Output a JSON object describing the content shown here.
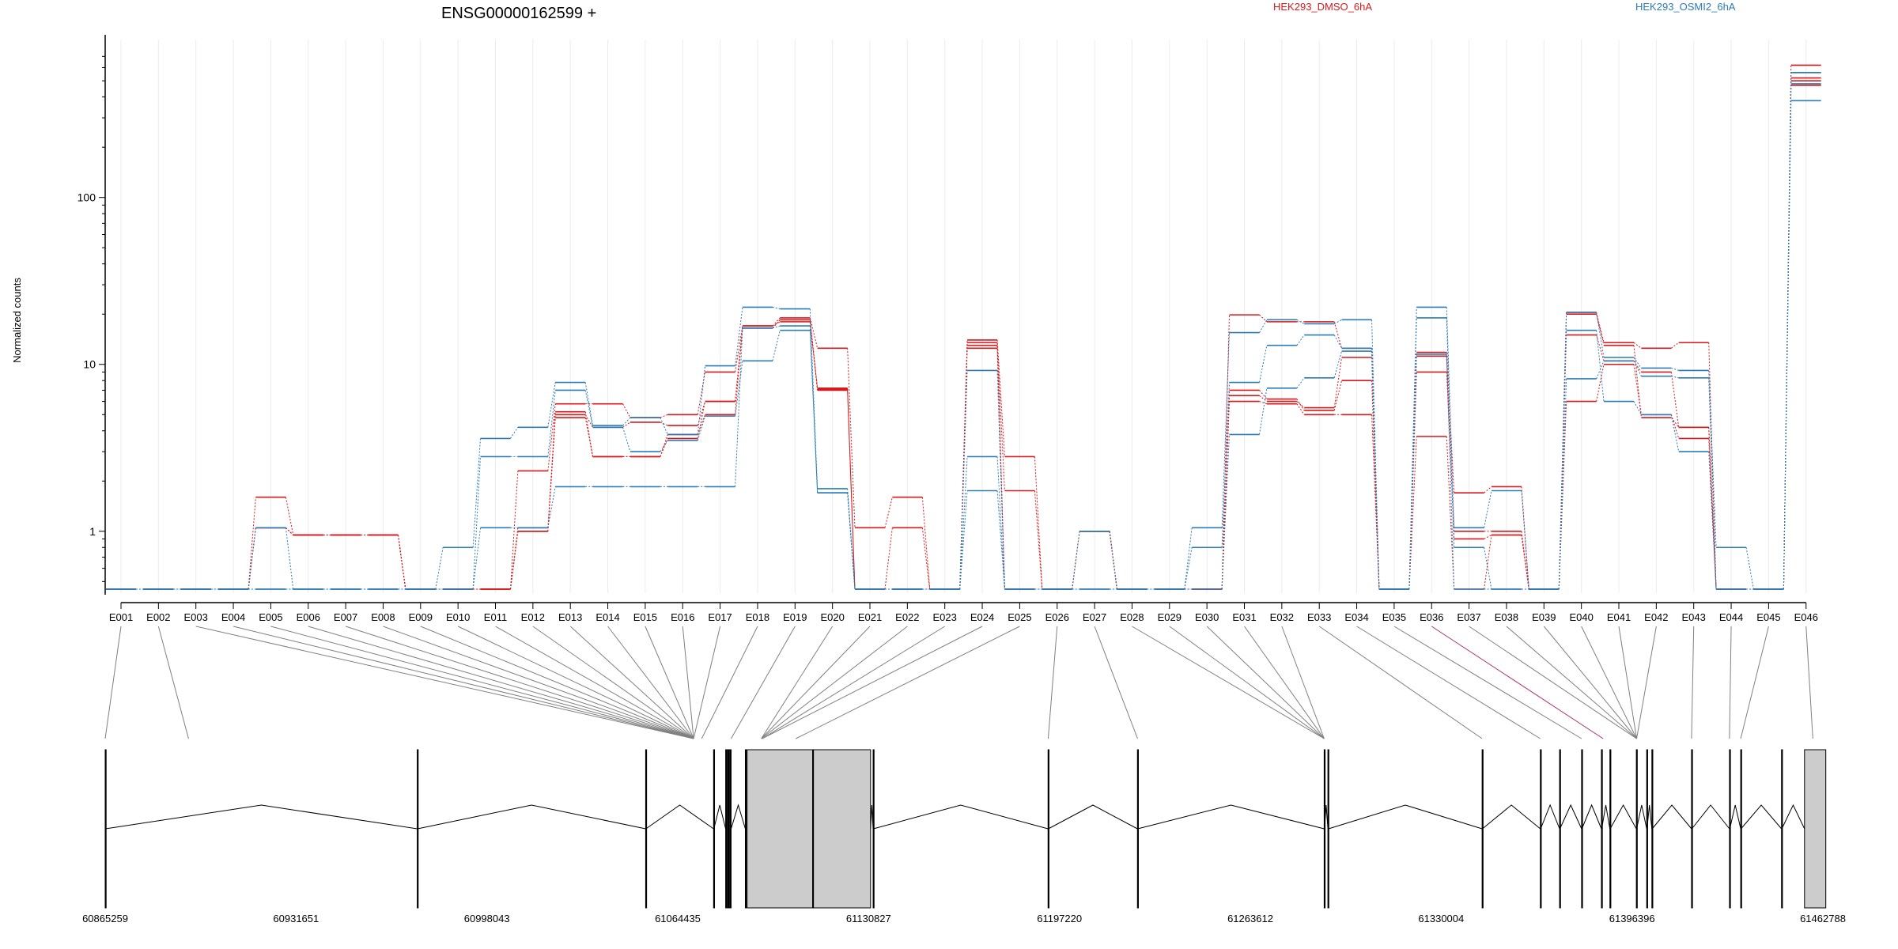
{
  "chart_data": {
    "type": "line",
    "title": "ENSG00000162599 +",
    "ylabel": "Normalized counts",
    "y_scale": "log",
    "ylim": [
      0.45,
      750
    ],
    "y_ticks": [
      1,
      10,
      100
    ],
    "y_tick_labels": [
      "1",
      "10",
      "100"
    ],
    "grid": "vertical, light",
    "legend_placement": "top-right",
    "colors": {
      "HEK293_DMSO_6hA": "#d7191c",
      "HEK293_OSMI2_6hA": "#2c7bb6",
      "gene_model": "#000000",
      "exon_fill": "#cccccc",
      "connector": "#808080",
      "highlight_connector": "#b0306a"
    },
    "categories": [
      "E001",
      "E002",
      "E003",
      "E004",
      "E005",
      "E006",
      "E007",
      "E008",
      "E009",
      "E010",
      "E011",
      "E012",
      "E013",
      "E014",
      "E015",
      "E016",
      "E017",
      "E018",
      "E019",
      "E020",
      "E021",
      "E022",
      "E023",
      "E024",
      "E025",
      "E026",
      "E027",
      "E028",
      "E029",
      "E030",
      "E031",
      "E032",
      "E033",
      "E034",
      "E035",
      "E036",
      "E037",
      "E038",
      "E039",
      "E040",
      "E041",
      "E042",
      "E043",
      "E044",
      "E045",
      "E046"
    ],
    "series": [
      {
        "name": "HEK293_DMSO_6hA",
        "values": [
          0.45,
          0.45,
          0.45,
          0.45,
          1.6,
          0.95,
          0.95,
          0.95,
          0.45,
          0.45,
          0.45,
          2.3,
          5.8,
          5.8,
          4.8,
          5.0,
          9.0,
          17.0,
          19.0,
          12.5,
          1.05,
          1.6,
          0.45,
          14.0,
          2.8,
          0.45,
          1.0,
          0.45,
          0.45,
          0.45,
          19.8,
          18.0,
          18.0,
          12.5,
          0.45,
          11.8,
          1.7,
          1.85,
          0.45,
          20.5,
          13.5,
          12.5,
          13.5,
          0.45,
          0.45,
          620
        ]
      },
      {
        "name": "HEK293_DMSO_6hA",
        "values": [
          0.45,
          0.45,
          0.45,
          0.45,
          1.05,
          0.95,
          0.95,
          0.95,
          0.45,
          0.45,
          0.45,
          1.05,
          5.0,
          4.2,
          4.5,
          4.3,
          6.0,
          16.5,
          18.5,
          7.0,
          0.45,
          1.05,
          0.45,
          13.0,
          1.75,
          0.45,
          1.0,
          0.45,
          0.45,
          0.45,
          6.5,
          6.0,
          5.5,
          11.0,
          0.45,
          9.0,
          1.0,
          1.0,
          0.45,
          15.0,
          10.5,
          9.0,
          4.2,
          0.45,
          0.45,
          500
        ]
      },
      {
        "name": "HEK293_DMSO_6hA",
        "values": [
          0.45,
          0.45,
          0.45,
          0.45,
          1.05,
          0.95,
          0.95,
          0.95,
          0.45,
          0.45,
          0.45,
          1.0,
          5.2,
          2.8,
          2.8,
          3.8,
          5.0,
          17.0,
          18.0,
          7.2,
          0.45,
          0.45,
          0.45,
          13.5,
          0.45,
          0.45,
          1.0,
          0.45,
          0.45,
          0.45,
          6.0,
          5.8,
          5.0,
          5.0,
          0.45,
          3.7,
          0.45,
          0.95,
          0.45,
          6.0,
          10.0,
          5.0,
          3.6,
          0.45,
          0.45,
          470
        ]
      },
      {
        "name": "HEK293_DMSO_6hA",
        "values": [
          0.45,
          0.45,
          0.45,
          0.45,
          1.05,
          0.95,
          0.95,
          0.95,
          0.45,
          0.45,
          0.45,
          1.0,
          4.8,
          2.8,
          2.8,
          3.6,
          6.0,
          16.5,
          18.5,
          7.1,
          0.45,
          0.45,
          0.45,
          12.5,
          0.45,
          0.45,
          1.0,
          0.45,
          0.45,
          0.45,
          7.0,
          6.2,
          5.3,
          8.0,
          0.45,
          11.2,
          0.9,
          0.95,
          0.45,
          20.0,
          13.0,
          4.8,
          4.2,
          0.45,
          0.45,
          520
        ]
      },
      {
        "name": "HEK293_OSMI2_6hA",
        "values": [
          0.45,
          0.45,
          0.45,
          0.45,
          1.05,
          0.45,
          0.45,
          0.45,
          0.45,
          0.8,
          3.6,
          4.2,
          7.8,
          4.3,
          4.8,
          3.8,
          9.8,
          22.0,
          21.5,
          1.8,
          0.45,
          0.45,
          0.45,
          9.2,
          0.45,
          0.45,
          1.0,
          0.45,
          0.45,
          1.05,
          15.5,
          18.5,
          17.5,
          18.5,
          0.45,
          22.0,
          1.05,
          1.75,
          0.45,
          20.5,
          11.0,
          9.5,
          9.2,
          0.8,
          0.45,
          560
        ]
      },
      {
        "name": "HEK293_OSMI2_6hA",
        "values": [
          0.45,
          0.45,
          0.45,
          0.45,
          0.45,
          0.45,
          0.45,
          0.45,
          0.45,
          0.45,
          2.8,
          2.8,
          7.0,
          4.2,
          3.0,
          3.5,
          4.9,
          10.5,
          16.0,
          1.7,
          0.45,
          0.45,
          0.45,
          2.8,
          0.45,
          0.45,
          0.45,
          0.45,
          0.45,
          0.8,
          7.8,
          13.0,
          15.0,
          12.5,
          0.45,
          19.0,
          0.8,
          0.45,
          0.45,
          16.0,
          6.0,
          5.0,
          3.0,
          0.45,
          0.45,
          380
        ]
      },
      {
        "name": "HEK293_OSMI2_6hA",
        "values": [
          0.45,
          0.45,
          0.45,
          0.45,
          0.45,
          0.45,
          0.45,
          0.45,
          0.45,
          0.45,
          1.05,
          1.05,
          1.85,
          1.85,
          1.85,
          1.85,
          1.85,
          16.5,
          17.0,
          1.7,
          0.45,
          0.45,
          0.45,
          1.75,
          0.45,
          0.45,
          0.45,
          0.45,
          0.45,
          0.45,
          3.8,
          7.2,
          8.3,
          12.0,
          0.45,
          11.5,
          0.45,
          0.45,
          0.45,
          8.2,
          10.5,
          8.5,
          8.3,
          0.45,
          0.45,
          480
        ]
      }
    ],
    "genomic_axis": {
      "tick_labels": [
        "60865259",
        "60931651",
        "60998043",
        "61064435",
        "61130827",
        "61197220",
        "61263612",
        "61330004",
        "61396396",
        "61462788"
      ]
    },
    "gene_model": {
      "exon_starts": [
        60865259,
        60973813,
        61053272,
        61076902,
        61081102,
        61081702,
        61082602,
        61087952,
        61111352,
        61132402,
        61193252,
        61224352,
        61289302,
        61290602,
        61344252,
        61364502,
        61371202,
        61378852,
        61385752,
        61388702,
        61397902,
        61401502,
        61403302,
        61417102,
        61430302,
        61434202,
        61448402
      ],
      "exon_ends": [
        60865359,
        60973913,
        61053372,
        61077002,
        61081202,
        61082302,
        61083002,
        61088052,
        61111452,
        61132502,
        61193352,
        61224452,
        61289402,
        61290802,
        61344352,
        61364602,
        61371302,
        61378952,
        61385852,
        61388802,
        61398002,
        61401602,
        61403402,
        61417202,
        61430402,
        61434302,
        61448502
      ],
      "large_exons": [
        [
          61088552,
          61111352
        ],
        [
          61111652,
          61131502
        ],
        [
          61456402,
          61463802
        ]
      ],
      "exon_attach": [
        60865259,
        60894259,
        61069952,
        61069952,
        61069952,
        61069952,
        61069952,
        61069952,
        61069952,
        61069952,
        61069952,
        61069952,
        61069952,
        61069952,
        61069952,
        61069952,
        61069952,
        61072752,
        61083002,
        61093502,
        61093502,
        61093502,
        61093802,
        61093802,
        61105502,
        61193302,
        61224402,
        61289302,
        61289302,
        61289302,
        61289302,
        61289302,
        61344252,
        61364502,
        61378852,
        61386352,
        61398002,
        61398002,
        61398002,
        61398002,
        61398002,
        61398002,
        61417102,
        61430302,
        61434202,
        61459302
      ],
      "highlight_exon": "E036"
    }
  }
}
